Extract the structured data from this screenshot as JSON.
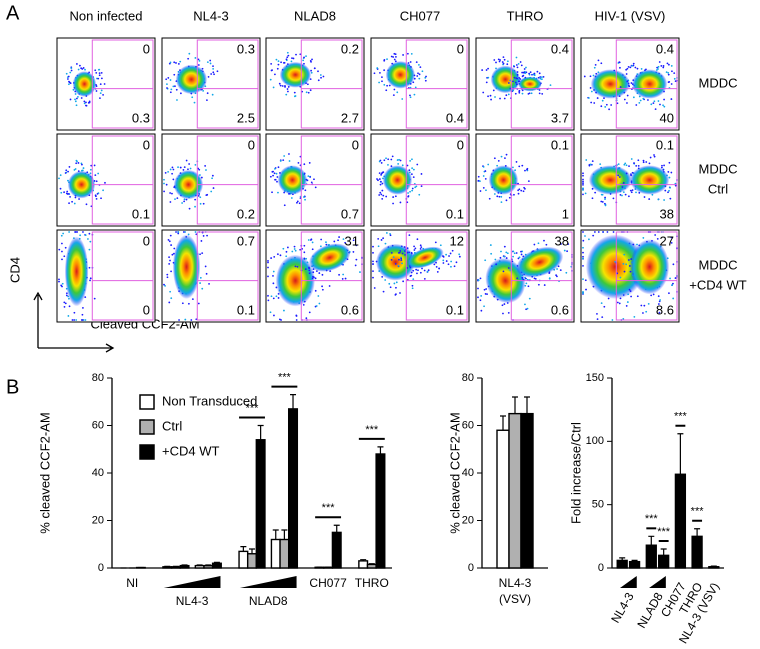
{
  "panel_a": {
    "label": "A",
    "columns": [
      "Non infected",
      "NL4-3",
      "NLAD8",
      "CH077",
      "THRO",
      "HIV-1 (VSV)"
    ],
    "rows": [
      {
        "label": [
          "MDDC"
        ],
        "top_right": [
          0,
          0.3,
          0.2,
          0,
          0.4,
          0.4
        ],
        "bottom_right": [
          0.3,
          2.5,
          2.7,
          0.4,
          3.7,
          40
        ]
      },
      {
        "label": [
          "MDDC",
          "Ctrl"
        ],
        "top_right": [
          0,
          0,
          0,
          0,
          0.1,
          0.1
        ],
        "bottom_right": [
          0.1,
          0.2,
          0.7,
          0.1,
          1,
          38
        ]
      },
      {
        "label": [
          "MDDC",
          "+CD4 WT"
        ],
        "top_right": [
          0,
          0.7,
          31,
          12,
          38,
          27
        ],
        "bottom_right": [
          0,
          0.1,
          0.6,
          0.1,
          0.6,
          8.6
        ]
      }
    ],
    "y_axis_label": "CD4",
    "x_axis_label": "Cleaved CCF2-AM"
  },
  "panel_b": {
    "label": "B",
    "chart_data": [
      {
        "type": "bar",
        "ylabel": "% cleaved CCF2-AM",
        "ylim": [
          0,
          80
        ],
        "yticks": [
          0,
          20,
          40,
          60,
          80
        ],
        "groups": [
          "NI",
          "NL4-3",
          "NLAD8",
          "CH077",
          "THRO"
        ],
        "legend": "upper left",
        "series": [
          {
            "name": "Non Transduced",
            "color": "#ffffff",
            "values": [
              [
                0
              ],
              [
                0.5,
                1
              ],
              [
                7,
                12
              ],
              [
                0.3
              ],
              [
                3
              ]
            ],
            "errors": [
              [
                0
              ],
              [
                0.2,
                0.3
              ],
              [
                2,
                4
              ],
              [
                0.1
              ],
              [
                0.5
              ]
            ]
          },
          {
            "name": "Ctrl",
            "color": "#b0b0b0",
            "values": [
              [
                0
              ],
              [
                0.5,
                1
              ],
              [
                6,
                12
              ],
              [
                0.3
              ],
              [
                1.5
              ]
            ],
            "errors": [
              [
                0
              ],
              [
                0.2,
                0.3
              ],
              [
                2,
                4
              ],
              [
                0.1
              ],
              [
                0.3
              ]
            ]
          },
          {
            "name": "+CD4 WT",
            "color": "#000000",
            "values": [
              [
                0.2
              ],
              [
                1,
                2
              ],
              [
                54,
                67
              ],
              [
                15
              ],
              [
                48
              ]
            ],
            "errors": [
              [
                0
              ],
              [
                0.3,
                0.4
              ],
              [
                6,
                6
              ],
              [
                3
              ],
              [
                3
              ]
            ]
          }
        ],
        "significance": [
          [
            null
          ],
          [
            null,
            null
          ],
          [
            "***",
            "***"
          ],
          [
            "***"
          ],
          [
            "***"
          ]
        ]
      },
      {
        "type": "bar",
        "ylabel": "% cleaved CCF2-AM",
        "ylim": [
          0,
          80
        ],
        "yticks": [
          0,
          20,
          40,
          60,
          80
        ],
        "groups": [
          [
            "NL4-3",
            "(VSV)"
          ]
        ],
        "series": [
          {
            "color": "#ffffff",
            "values": [
              [
                58
              ]
            ],
            "errors": [
              [
                6
              ]
            ]
          },
          {
            "color": "#b0b0b0",
            "values": [
              [
                65
              ]
            ],
            "errors": [
              [
                7
              ]
            ]
          },
          {
            "color": "#000000",
            "values": [
              [
                65
              ]
            ],
            "errors": [
              [
                7
              ]
            ]
          }
        ]
      },
      {
        "type": "bar",
        "ylabel": "Fold increase/Ctrl",
        "ylim": [
          0,
          150
        ],
        "yticks": [
          0,
          50,
          100,
          150
        ],
        "groups": [
          "NL4-3",
          "NLAD8",
          "CH077",
          "THRO",
          "NL4-3 (VSV)"
        ],
        "series": [
          {
            "color": "#000000",
            "values": [
              [
                6,
                5
              ],
              [
                18,
                10
              ],
              [
                74
              ],
              [
                25
              ],
              [
                1
              ]
            ],
            "errors": [
              [
                2,
                1
              ],
              [
                7,
                5
              ],
              [
                32
              ],
              [
                6
              ],
              [
                0.5
              ]
            ]
          }
        ],
        "significance": [
          [
            null,
            null
          ],
          [
            "***",
            "***"
          ],
          [
            "***"
          ],
          [
            "***"
          ],
          [
            null
          ]
        ]
      }
    ]
  }
}
